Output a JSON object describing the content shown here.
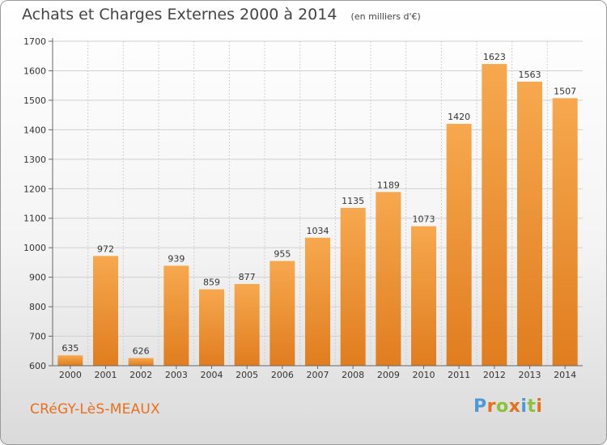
{
  "chart_data": {
    "type": "bar",
    "title": "Achats et Charges Externes 2000 à 2014",
    "unit_label": "(en milliers d'€)",
    "categories": [
      "2000",
      "2001",
      "2002",
      "2003",
      "2004",
      "2005",
      "2006",
      "2007",
      "2008",
      "2009",
      "2010",
      "2011",
      "2012",
      "2013",
      "2014"
    ],
    "values": [
      635,
      972,
      626,
      939,
      859,
      877,
      955,
      1034,
      1135,
      1189,
      1073,
      1420,
      1623,
      1563,
      1507
    ],
    "ylim": [
      600,
      1700
    ],
    "yticks": [
      600,
      700,
      800,
      900,
      1000,
      1100,
      1200,
      1300,
      1400,
      1500,
      1600,
      1700
    ],
    "grid": true,
    "colors": {
      "bar_light": "#f7a84e",
      "bar_dark": "#e07d1f",
      "grid": "#d0d0d0",
      "label": "#333333"
    }
  },
  "footer": {
    "place": "CRéGY-LèS-MEAUX"
  },
  "logo": {
    "text": "Proxiti",
    "colors": [
      "#4a9ad8",
      "#e8701a",
      "#8ac23c",
      "#e8701a",
      "#4a9ad8",
      "#8ac23c",
      "#e8701a"
    ]
  }
}
